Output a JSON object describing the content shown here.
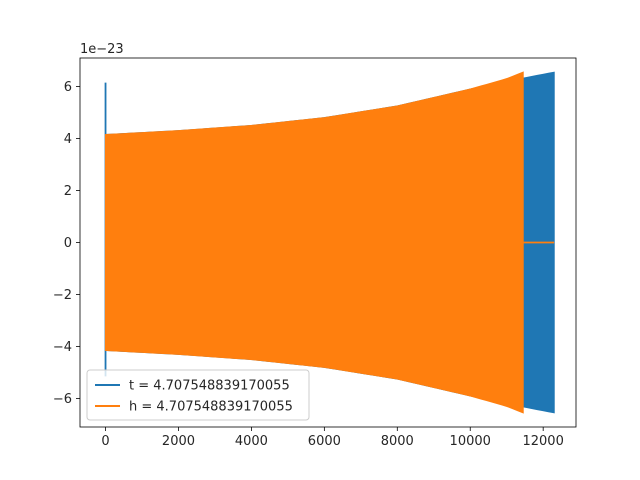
{
  "chart_data": {
    "type": "area",
    "title": "",
    "xlabel": "",
    "ylabel": "",
    "y_offset_label": "1e−23",
    "xlim": [
      -700,
      12900
    ],
    "ylim": [
      -7.1,
      7.1
    ],
    "x_ticks": [
      0,
      2000,
      4000,
      6000,
      8000,
      10000,
      12000
    ],
    "x_tick_labels": [
      "0",
      "2000",
      "4000",
      "6000",
      "8000",
      "10000",
      "12000"
    ],
    "y_ticks": [
      -6,
      -4,
      -2,
      0,
      2,
      4,
      6
    ],
    "y_tick_labels": [
      "−6",
      "−4",
      "−2",
      "0",
      "2",
      "4",
      "6"
    ],
    "grid": false,
    "legend_position": "lower-left",
    "series": [
      {
        "name": "t = 4.707548839170055",
        "color": "#1f77b4",
        "envelope_x": [
          0,
          2000,
          4000,
          6000,
          8000,
          10000,
          11000,
          12300
        ],
        "envelope_y": [
          4.15,
          4.3,
          4.5,
          4.8,
          5.25,
          5.9,
          6.2,
          6.55
        ],
        "spike": {
          "x": 0,
          "upper": 6.15,
          "lower": -5.15
        },
        "end_x": 12300
      },
      {
        "name": "h = 4.707548839170055",
        "color": "#ff7f0e",
        "envelope_x": [
          0,
          2000,
          4000,
          6000,
          8000,
          10000,
          11000,
          11450
        ],
        "envelope_y": [
          4.15,
          4.3,
          4.5,
          4.8,
          5.25,
          5.9,
          6.3,
          6.55
        ],
        "end_x": 11450,
        "tail": {
          "x_start": 11450,
          "x_end": 12300,
          "y": 0
        }
      }
    ]
  }
}
